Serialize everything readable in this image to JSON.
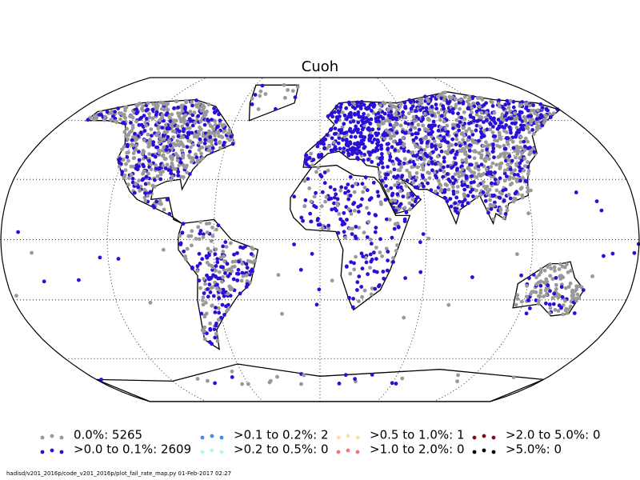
{
  "title": "Cuoh",
  "legend": [
    {
      "label": "0.0%: 5265",
      "color": "#999999"
    },
    {
      "label": ">0.0 to 0.1%: 2609",
      "color": "#2a0fd8"
    },
    {
      "label": ">0.1 to 0.2%: 2",
      "color": "#3d8fe8"
    },
    {
      "label": ">0.2 to 0.5%: 0",
      "color": "#b5f3f7"
    },
    {
      "label": ">0.5 to 1.0%: 1",
      "color": "#ffdda0"
    },
    {
      "label": ">1.0 to 2.0%: 0",
      "color": "#f5766a"
    },
    {
      "label": ">2.0 to 5.0%: 0",
      "color": "#7d0a1e"
    },
    {
      "label": ">5.0%: 0",
      "color": "#000000"
    }
  ],
  "footer": "hadisd/v201_2016p/code_v201_2016p/plot_fail_rate_map.py   01-Feb-2017 02:27"
}
